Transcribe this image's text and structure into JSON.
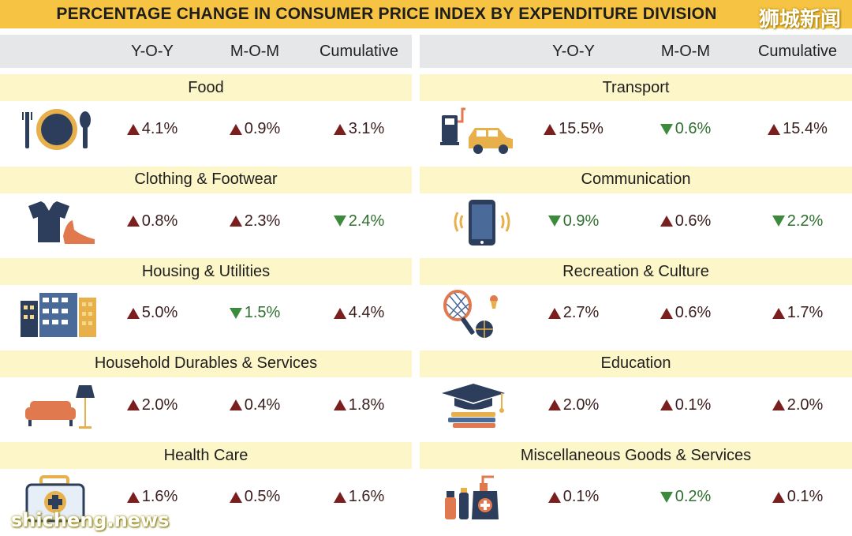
{
  "title": "PERCENTAGE CHANGE IN CONSUMER PRICE INDEX BY EXPENDITURE DIVISION",
  "watermark_top": "狮城新闻",
  "watermark_bottom": "shicheng.news",
  "columns": [
    "Y-O-Y",
    "M-O-M",
    "Cumulative"
  ],
  "colors": {
    "up": "#7a1e1e",
    "down": "#3c8a3c",
    "header": "#f6c343",
    "category_band": "#fdf6c8"
  },
  "chart_data": {
    "type": "table",
    "title": "PERCENTAGE CHANGE IN CONSUMER PRICE INDEX BY EXPENDITURE DIVISION",
    "columns": [
      "Y-O-Y",
      "M-O-M",
      "Cumulative"
    ],
    "left": [
      {
        "category": "Food",
        "icon": "plate-cutlery-icon",
        "values": [
          {
            "text": "4.1%",
            "dir": "up"
          },
          {
            "text": "0.9%",
            "dir": "up"
          },
          {
            "text": "3.1%",
            "dir": "up"
          }
        ]
      },
      {
        "category": "Clothing & Footwear",
        "icon": "shirt-shoe-icon",
        "values": [
          {
            "text": "0.8%",
            "dir": "up"
          },
          {
            "text": "2.3%",
            "dir": "up"
          },
          {
            "text": "2.4%",
            "dir": "down"
          }
        ]
      },
      {
        "category": "Housing & Utilities",
        "icon": "buildings-icon",
        "values": [
          {
            "text": "5.0%",
            "dir": "up"
          },
          {
            "text": "1.5%",
            "dir": "down"
          },
          {
            "text": "4.4%",
            "dir": "up"
          }
        ]
      },
      {
        "category": "Household Durables & Services",
        "icon": "sofa-lamp-icon",
        "values": [
          {
            "text": "2.0%",
            "dir": "up"
          },
          {
            "text": "0.4%",
            "dir": "up"
          },
          {
            "text": "1.8%",
            "dir": "up"
          }
        ]
      },
      {
        "category": "Health Care",
        "icon": "first-aid-kit-icon",
        "values": [
          {
            "text": "1.6%",
            "dir": "up"
          },
          {
            "text": "0.5%",
            "dir": "up"
          },
          {
            "text": "1.6%",
            "dir": "up"
          }
        ]
      }
    ],
    "right": [
      {
        "category": "Transport",
        "icon": "fuel-car-icon",
        "values": [
          {
            "text": "15.5%",
            "dir": "up"
          },
          {
            "text": "0.6%",
            "dir": "down"
          },
          {
            "text": "15.4%",
            "dir": "up"
          }
        ]
      },
      {
        "category": "Communication",
        "icon": "smartphone-icon",
        "values": [
          {
            "text": "0.9%",
            "dir": "down"
          },
          {
            "text": "0.6%",
            "dir": "up"
          },
          {
            "text": "2.2%",
            "dir": "down"
          }
        ]
      },
      {
        "category": "Recreation & Culture",
        "icon": "racket-ball-icon",
        "values": [
          {
            "text": "2.7%",
            "dir": "up"
          },
          {
            "text": "0.6%",
            "dir": "up"
          },
          {
            "text": "1.7%",
            "dir": "up"
          }
        ]
      },
      {
        "category": "Education",
        "icon": "graduation-books-icon",
        "values": [
          {
            "text": "2.0%",
            "dir": "up"
          },
          {
            "text": "0.1%",
            "dir": "up"
          },
          {
            "text": "2.0%",
            "dir": "up"
          }
        ]
      },
      {
        "category": "Miscellaneous Goods & Services",
        "icon": "toiletries-icon",
        "values": [
          {
            "text": "0.1%",
            "dir": "up"
          },
          {
            "text": "0.2%",
            "dir": "down"
          },
          {
            "text": "0.1%",
            "dir": "up"
          }
        ]
      }
    ]
  }
}
